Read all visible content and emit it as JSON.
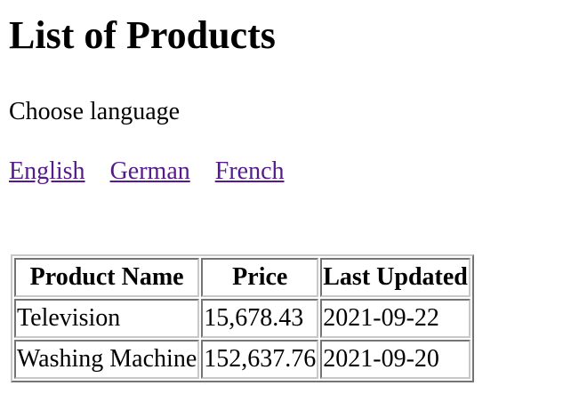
{
  "page": {
    "title": "List of Products",
    "choose_language": "Choose language"
  },
  "languages": [
    {
      "label": "English"
    },
    {
      "label": "German"
    },
    {
      "label": "French"
    }
  ],
  "table": {
    "headers": [
      "Product Name",
      "Price",
      "Last Updated"
    ],
    "rows": [
      [
        "Television",
        "15,678.43",
        "2021-09-22"
      ],
      [
        "Washing Machine",
        "152,637.76",
        "2021-09-20"
      ]
    ]
  },
  "colors": {
    "link_visited": "#551a8b",
    "table_border": "#c8c8c8"
  }
}
